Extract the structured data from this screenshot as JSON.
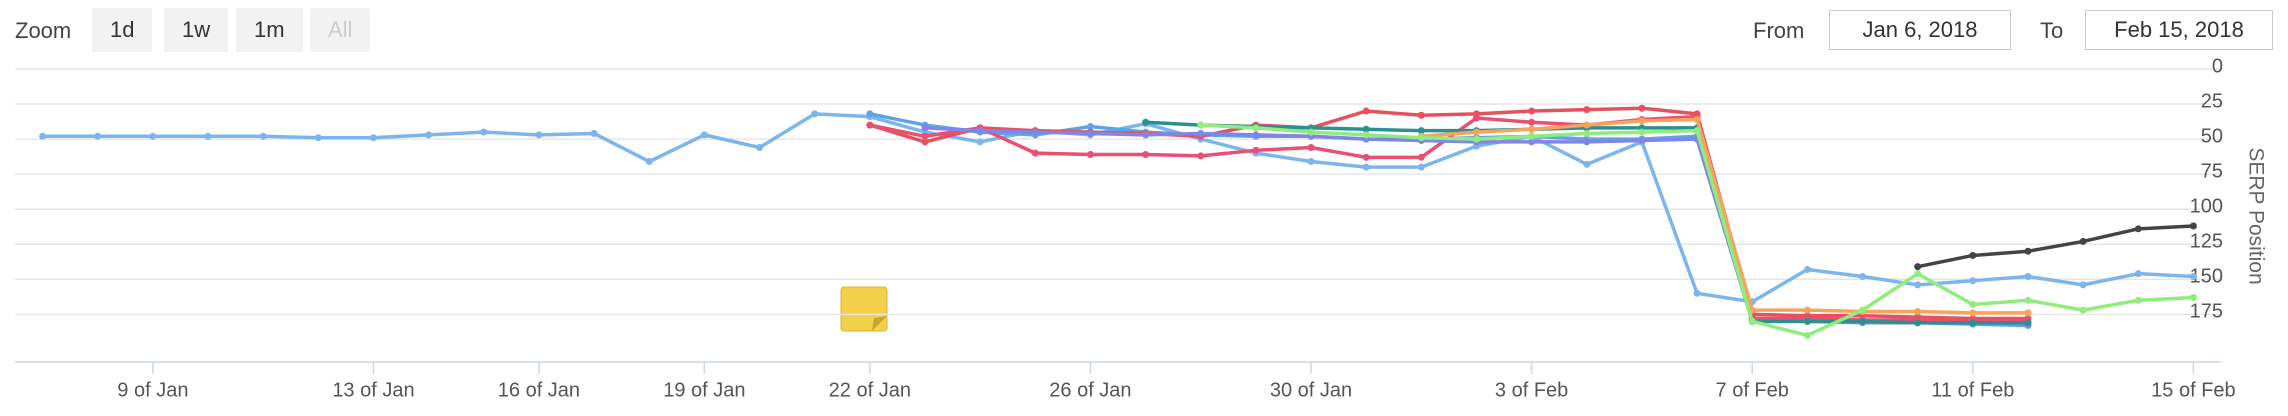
{
  "toolbar": {
    "zoom_label": "Zoom",
    "zoom_buttons": [
      "1d",
      "1w",
      "1m",
      "All"
    ],
    "from_label": "From",
    "from": "Jan 6, 2018",
    "to_label": "To",
    "to": "Feb 15, 2018"
  },
  "chart_data": {
    "type": "line",
    "y_axis_label": "SERP Position",
    "reversed": true,
    "grid": true,
    "x": [
      7,
      8,
      9,
      10,
      11,
      12,
      13,
      14,
      15,
      16,
      17,
      18,
      19,
      20,
      21,
      22,
      23,
      24,
      25,
      26,
      27,
      28,
      29,
      30,
      31,
      32,
      33,
      34,
      35,
      36,
      37,
      38,
      39,
      40,
      41,
      42,
      43,
      44,
      45,
      46
    ],
    "xlim": [
      6.5,
      46.5
    ],
    "xticks": [
      {
        "value": 9,
        "label": "9 of Jan"
      },
      {
        "value": 13,
        "label": "13 of Jan"
      },
      {
        "value": 16,
        "label": "16 of Jan"
      },
      {
        "value": 19,
        "label": "19 of Jan"
      },
      {
        "value": 22,
        "label": "22 of Jan"
      },
      {
        "value": 26,
        "label": "26 of Jan"
      },
      {
        "value": 30,
        "label": "30 of Jan"
      },
      {
        "value": 34,
        "label": "3 of Feb"
      },
      {
        "value": 38,
        "label": "7 of Feb"
      },
      {
        "value": 42,
        "label": "11 of Feb"
      },
      {
        "value": 46,
        "label": "15 of Feb"
      }
    ],
    "ylim": [
      0,
      209
    ],
    "yticks": [
      0,
      25,
      50,
      75,
      100,
      125,
      150,
      175
    ],
    "series": [
      {
        "color": "#7cb5ec",
        "values": [
          48,
          48,
          48,
          48,
          48,
          49,
          49,
          47,
          45,
          47,
          46,
          66,
          47,
          56,
          32,
          34,
          45,
          52,
          44,
          47,
          39,
          50,
          60,
          66,
          70,
          70,
          55,
          48,
          68,
          52,
          160,
          166,
          143,
          148,
          154,
          151,
          148,
          154,
          146,
          148
        ]
      },
      {
        "color": "#5ea3e6",
        "values": [
          null,
          null,
          null,
          null,
          null,
          null,
          null,
          null,
          null,
          null,
          null,
          null,
          null,
          null,
          null,
          32,
          40,
          45,
          47,
          41,
          45,
          47,
          48,
          48,
          50,
          50,
          49,
          48,
          50,
          50,
          48,
          178,
          179,
          180,
          181,
          182,
          183,
          null,
          null,
          null
        ]
      },
      {
        "color": "#e4525e",
        "values": [
          null,
          null,
          null,
          null,
          null,
          null,
          null,
          null,
          null,
          null,
          null,
          null,
          null,
          null,
          null,
          40,
          52,
          42,
          44,
          45,
          46,
          48,
          40,
          42,
          30,
          33,
          32,
          30,
          29,
          28,
          32,
          175,
          176,
          176,
          177,
          178,
          178,
          null,
          null,
          null
        ]
      },
      {
        "color": "#ea4f72",
        "values": [
          null,
          null,
          null,
          null,
          null,
          null,
          null,
          null,
          null,
          null,
          null,
          null,
          null,
          null,
          null,
          40,
          48,
          42,
          60,
          61,
          61,
          62,
          58,
          56,
          63,
          63,
          35,
          38,
          40,
          36,
          34,
          178,
          178,
          179,
          179,
          180,
          180,
          null,
          null,
          null
        ]
      },
      {
        "color": "#8085e9",
        "values": [
          null,
          null,
          null,
          null,
          null,
          null,
          null,
          null,
          null,
          null,
          null,
          null,
          null,
          null,
          null,
          null,
          42,
          44,
          45,
          46,
          47,
          46,
          47,
          48,
          50,
          51,
          52,
          52,
          52,
          51,
          50,
          180,
          180,
          181,
          181,
          181,
          182,
          null,
          null,
          null
        ]
      },
      {
        "color": "#2b908f",
        "values": [
          null,
          null,
          null,
          null,
          null,
          null,
          null,
          null,
          null,
          null,
          null,
          null,
          null,
          null,
          null,
          null,
          null,
          null,
          null,
          null,
          38,
          40,
          41,
          42,
          43,
          44,
          44,
          43,
          42,
          42,
          42,
          180,
          180,
          180,
          181,
          181,
          181,
          null,
          null,
          null
        ]
      },
      {
        "color": "#f7a35c",
        "values": [
          null,
          null,
          null,
          null,
          null,
          null,
          null,
          null,
          null,
          null,
          null,
          null,
          null,
          null,
          null,
          null,
          null,
          null,
          null,
          null,
          null,
          null,
          null,
          null,
          null,
          48,
          45,
          43,
          40,
          37,
          36,
          172,
          172,
          173,
          173,
          174,
          174,
          null,
          null,
          null
        ]
      },
      {
        "color": "#90ed7d",
        "values": [
          null,
          null,
          null,
          null,
          null,
          null,
          null,
          null,
          null,
          null,
          null,
          null,
          null,
          null,
          null,
          null,
          null,
          null,
          null,
          null,
          null,
          40,
          42,
          45,
          47,
          49,
          50,
          48,
          46,
          45,
          44,
          180,
          190,
          172,
          146,
          168,
          165,
          172,
          165,
          163
        ]
      },
      {
        "color": "#434348",
        "values": [
          null,
          null,
          null,
          null,
          null,
          null,
          null,
          null,
          null,
          null,
          null,
          null,
          null,
          null,
          null,
          null,
          null,
          null,
          null,
          null,
          null,
          null,
          null,
          null,
          null,
          null,
          null,
          null,
          null,
          null,
          null,
          null,
          null,
          null,
          141,
          133,
          130,
          123,
          114,
          112
        ]
      }
    ]
  }
}
